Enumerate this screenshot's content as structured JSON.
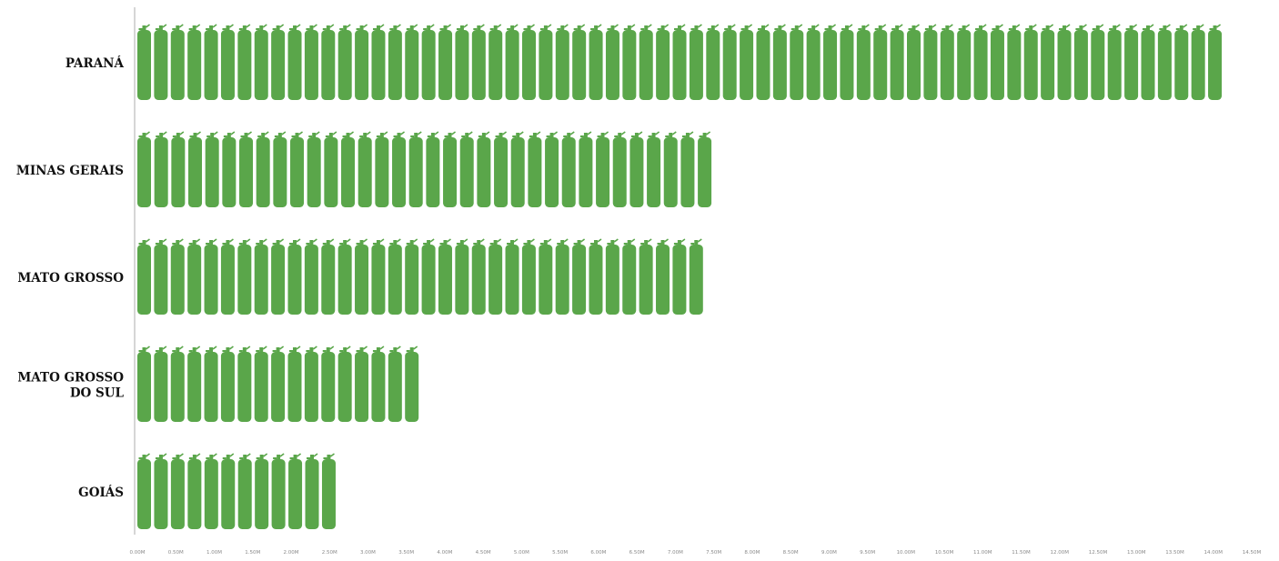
{
  "chart_data": {
    "type": "bar",
    "title": "",
    "xlabel": "",
    "ylabel": "",
    "orientation": "horizontal",
    "categories": [
      [
        "PARANÁ"
      ],
      [
        "MINAS GERAIS"
      ],
      [
        "MATO GROSSO"
      ],
      [
        "MATO GROSSO",
        "DO SUL"
      ],
      [
        "GOIÁS"
      ]
    ],
    "values": [
      14.11,
      7.47,
      7.36,
      3.66,
      2.58
    ],
    "xlim": [
      0,
      14.5
    ],
    "x_ticks": [
      "0.00M",
      "0.50M",
      "1.00M",
      "1.50M",
      "2.00M",
      "2.50M",
      "3.00M",
      "3.50M",
      "4.00M",
      "4.50M",
      "5.00M",
      "5.50M",
      "6.00M",
      "6.50M",
      "7.00M",
      "7.50M",
      "8.00M",
      "8.50M",
      "9.00M",
      "9.50M",
      "10.00M",
      "10.50M",
      "11.00M",
      "11.50M",
      "12.00M",
      "12.50M",
      "13.00M",
      "13.50M",
      "14.00M",
      "14.50M"
    ],
    "grid": false,
    "legend": "none",
    "bar_icon": "gas-cylinder-icon",
    "colors": {
      "bar": "#5aa64a",
      "bar_valve": "#5aa64a",
      "axis": "#c8c8c8",
      "label": "#111111",
      "tick": "#8a8a8a"
    }
  }
}
